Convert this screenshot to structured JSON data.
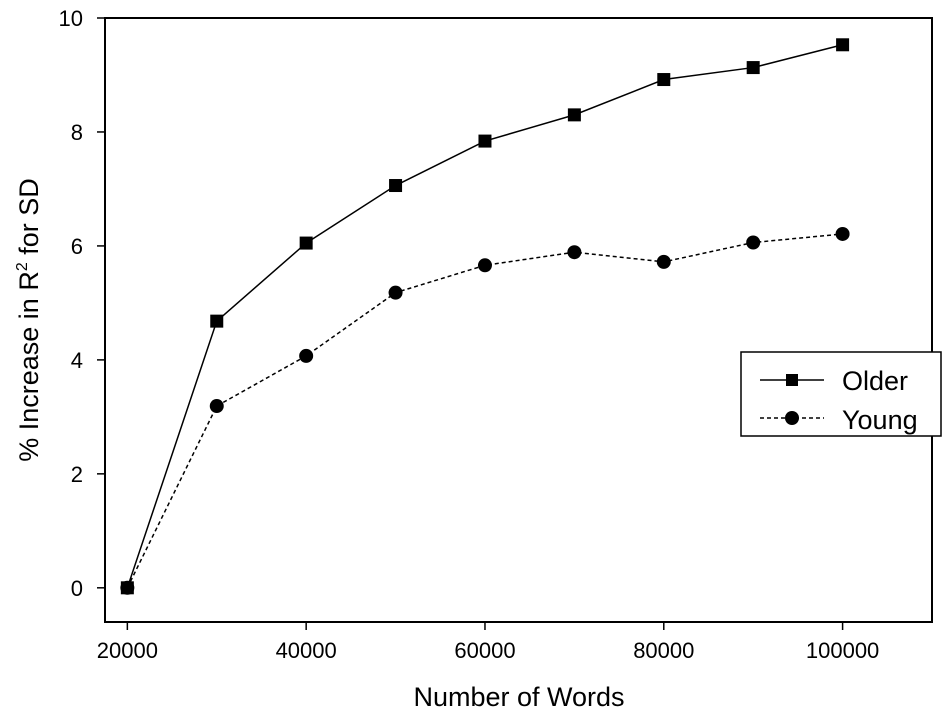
{
  "chart_data": {
    "type": "line",
    "xlabel": "Number of Words",
    "ylabel_prefix": "% Increase in R",
    "ylabel_superscript": "2",
    "ylabel_suffix": " for SD",
    "xlim": [
      17500,
      110000
    ],
    "ylim": [
      -0.6,
      10
    ],
    "x_ticks": [
      20000,
      40000,
      60000,
      80000,
      100000
    ],
    "x_tick_labels": [
      "20000",
      "40000",
      "60000",
      "80000",
      "100000"
    ],
    "y_ticks": [
      0,
      2,
      4,
      6,
      8,
      10
    ],
    "y_tick_labels": [
      "0",
      "2",
      "4",
      "6",
      "8",
      "10"
    ],
    "x": [
      20000,
      30000,
      40000,
      50000,
      60000,
      70000,
      80000,
      90000,
      100000
    ],
    "series": [
      {
        "name": "Older",
        "marker": "square",
        "line": "solid",
        "values": [
          0.0,
          4.68,
          6.05,
          7.06,
          7.84,
          8.3,
          8.92,
          9.13,
          9.53
        ]
      },
      {
        "name": "Young",
        "marker": "circle",
        "line": "dashed",
        "values": [
          0.0,
          3.19,
          4.07,
          5.18,
          5.66,
          5.89,
          5.72,
          6.06,
          6.21
        ]
      }
    ],
    "legend_position": "right",
    "grid": false,
    "colors": {
      "line": "#000000",
      "background": "#ffffff"
    }
  }
}
